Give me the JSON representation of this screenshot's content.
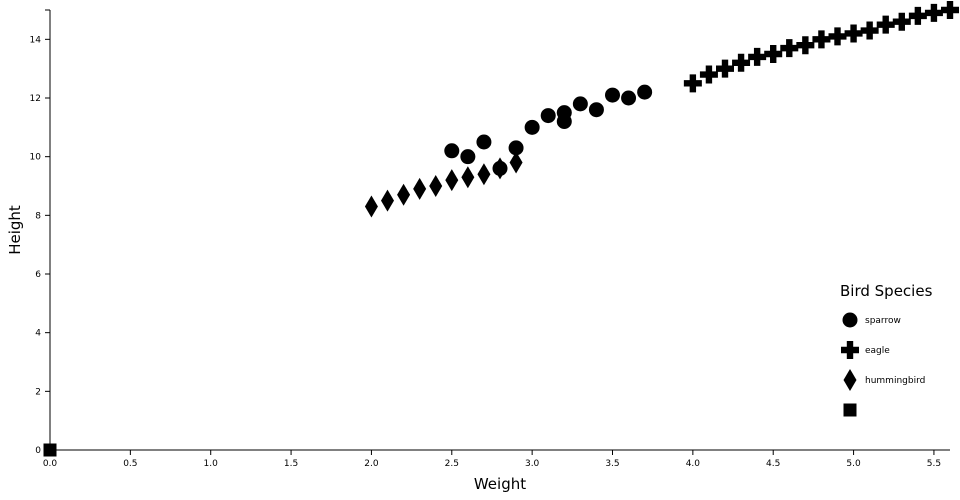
{
  "chart_data": {
    "type": "scatter",
    "xlabel": "Weight",
    "ylabel": "Height",
    "xlim": [
      0,
      5.6
    ],
    "ylim": [
      0,
      15
    ],
    "x_ticks": [
      "0.0",
      "0.5",
      "1.0",
      "1.5",
      "2.0",
      "2.5",
      "3.0",
      "3.5",
      "4.0",
      "4.5",
      "5.0",
      "5.5"
    ],
    "y_ticks": [
      "0",
      "2",
      "4",
      "6",
      "8",
      "10",
      "12",
      "14"
    ],
    "grid": false,
    "legend": {
      "title": "Bird Species",
      "placement": "bottom-right",
      "entries": [
        {
          "label": "sparrow",
          "shape": "circle"
        },
        {
          "label": "eagle",
          "shape": "cross"
        },
        {
          "label": "hummingbird",
          "shape": "diamond"
        },
        {
          "label": "",
          "shape": "square"
        }
      ]
    },
    "series": [
      {
        "name": "sparrow",
        "shape": "circle",
        "color": "#000000",
        "points": [
          [
            2.5,
            10.2
          ],
          [
            2.6,
            10.0
          ],
          [
            2.7,
            10.5
          ],
          [
            2.8,
            9.6
          ],
          [
            2.9,
            10.3
          ],
          [
            3.0,
            11.0
          ],
          [
            3.1,
            11.4
          ],
          [
            3.2,
            11.5
          ],
          [
            3.2,
            11.2
          ],
          [
            3.3,
            11.8
          ],
          [
            3.4,
            11.6
          ],
          [
            3.5,
            12.1
          ],
          [
            3.6,
            12.0
          ],
          [
            3.7,
            12.2
          ]
        ]
      },
      {
        "name": "eagle",
        "shape": "cross",
        "color": "#000000",
        "points": [
          [
            4.0,
            12.5
          ],
          [
            4.1,
            12.8
          ],
          [
            4.2,
            13.0
          ],
          [
            4.3,
            13.2
          ],
          [
            4.4,
            13.4
          ],
          [
            4.5,
            13.5
          ],
          [
            4.6,
            13.7
          ],
          [
            4.7,
            13.8
          ],
          [
            4.8,
            14.0
          ],
          [
            4.9,
            14.1
          ],
          [
            5.0,
            14.2
          ],
          [
            5.1,
            14.3
          ],
          [
            5.2,
            14.5
          ],
          [
            5.3,
            14.6
          ],
          [
            5.4,
            14.8
          ],
          [
            5.5,
            14.9
          ],
          [
            5.6,
            15.0
          ]
        ]
      },
      {
        "name": "hummingbird",
        "shape": "diamond",
        "color": "#000000",
        "points": [
          [
            2.0,
            8.3
          ],
          [
            2.1,
            8.5
          ],
          [
            2.2,
            8.7
          ],
          [
            2.3,
            8.9
          ],
          [
            2.4,
            9.0
          ],
          [
            2.5,
            9.2
          ],
          [
            2.6,
            9.3
          ],
          [
            2.7,
            9.4
          ],
          [
            2.8,
            9.6
          ],
          [
            2.9,
            9.8
          ]
        ]
      },
      {
        "name": "",
        "shape": "square",
        "color": "#000000",
        "points": [
          [
            0.0,
            0.0
          ]
        ]
      }
    ]
  }
}
